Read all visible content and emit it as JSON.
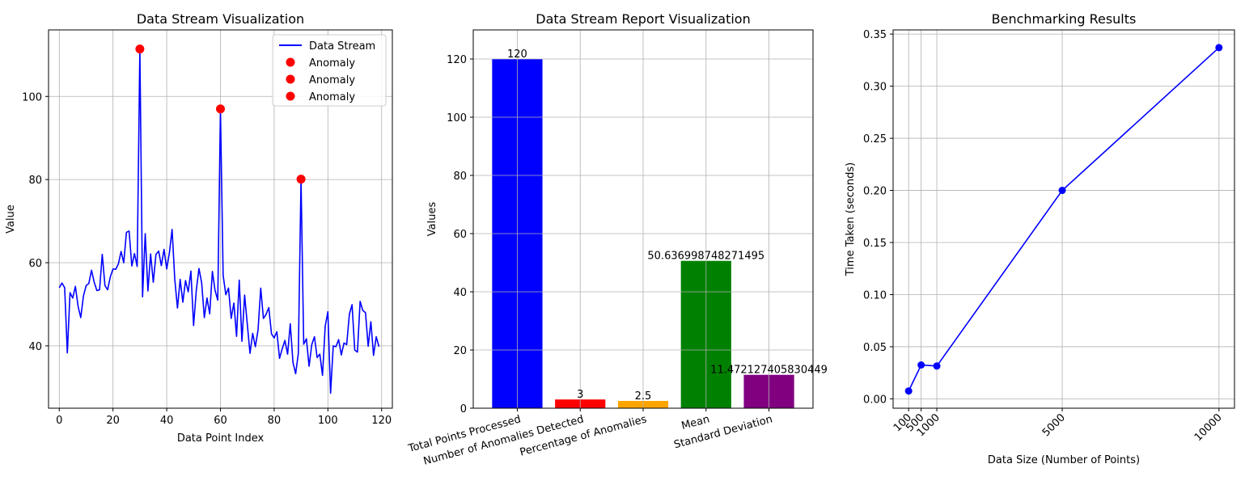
{
  "colors": {
    "line": "#0000ff",
    "anomaly": "#ff0000",
    "grid": "#b0b0b0",
    "axes": "#000000",
    "legend_border": "#cccccc"
  },
  "chart_data": [
    {
      "type": "line",
      "title": "Data Stream Visualization",
      "xlabel": "Data Point Index",
      "ylabel": "Value",
      "xlim": [
        -4,
        124
      ],
      "ylim": [
        25,
        116
      ],
      "xticks": [
        0,
        20,
        40,
        60,
        80,
        100,
        120
      ],
      "yticks": [
        40,
        60,
        80,
        100
      ],
      "grid": true,
      "legend": {
        "placement": "top-right",
        "entries": [
          "Data Stream",
          "Anomaly",
          "Anomaly",
          "Anomaly"
        ]
      },
      "series": [
        {
          "name": "Data Stream",
          "color": "#0000ff",
          "x_start": 0,
          "values": [
            54.0,
            55.1,
            54.0,
            38.3,
            52.8,
            51.5,
            54.3,
            49.5,
            46.8,
            52.0,
            54.5,
            55.0,
            58.2,
            55.3,
            53.3,
            53.5,
            62.0,
            54.5,
            53.5,
            56.6,
            58.5,
            58.4,
            59.7,
            62.7,
            60.0,
            67.3,
            67.6,
            59.2,
            62.2,
            59.1,
            111.4,
            51.8,
            67.0,
            53.2,
            62.1,
            55.3,
            62.0,
            62.8,
            59.3,
            63.2,
            58.5,
            62.4,
            68.0,
            56.0,
            49.1,
            56.0,
            50.5,
            55.7,
            53.0,
            58.0,
            44.9,
            53.3,
            58.6,
            55.2,
            46.8,
            51.5,
            47.7,
            57.9,
            53.3,
            51.0,
            97.0,
            57.0,
            52.3,
            53.9,
            46.6,
            50.3,
            42.3,
            55.8,
            41.1,
            52.2,
            45.2,
            38.2,
            43.0,
            39.8,
            43.8,
            53.9,
            46.6,
            47.6,
            49.2,
            42.9,
            41.9,
            43.4,
            37.0,
            39.3,
            41.3,
            38.0,
            45.3,
            36.0,
            33.3,
            38.2,
            80.1,
            40.4,
            41.7,
            35.1,
            40.3,
            42.2,
            37.2,
            38.0,
            32.9,
            44.7,
            48.2,
            28.6,
            40.0,
            39.8,
            41.5,
            37.8,
            40.7,
            40.3,
            47.6,
            49.9,
            39.0,
            38.5,
            50.7,
            48.5,
            48.0,
            39.9,
            45.8,
            37.7,
            42.2,
            39.8
          ]
        },
        {
          "name": "Anomaly",
          "color": "#ff0000",
          "points": [
            [
              30,
              111.4
            ]
          ]
        },
        {
          "name": "Anomaly",
          "color": "#ff0000",
          "points": [
            [
              60,
              97.0
            ]
          ]
        },
        {
          "name": "Anomaly",
          "color": "#ff0000",
          "points": [
            [
              90,
              80.1
            ]
          ]
        }
      ]
    },
    {
      "type": "bar",
      "title": "Data Stream Report Visualization",
      "xlabel": "",
      "ylabel": "Values",
      "ylim": [
        0,
        130
      ],
      "yticks": [
        0,
        20,
        40,
        60,
        80,
        100,
        120
      ],
      "grid": true,
      "categories": [
        "Total Points Processed",
        "Number of Anomalies Detected",
        "Percentage of Anomalies",
        "Mean",
        "Standard Deviation"
      ],
      "values": [
        120,
        3,
        2.5,
        50.636998748271495,
        11.472127405830449
      ],
      "value_labels": [
        "120",
        "3",
        "2.5",
        "50.636998748271495",
        "11.472127405830449"
      ],
      "colors": [
        "#0000ff",
        "#ff0000",
        "#ffa500",
        "#008000",
        "#800080"
      ]
    },
    {
      "type": "line",
      "title": "Benchmarking Results",
      "xlabel": "Data Size (Number of Points)",
      "ylabel": "Time Taken (seconds)",
      "xlim": [
        -395,
        10495
      ],
      "ylim": [
        -0.009,
        0.354
      ],
      "xticks": [
        100,
        500,
        1000,
        5000,
        10000
      ],
      "yticks": [
        0.0,
        0.05,
        0.1,
        0.15,
        0.2,
        0.25,
        0.3,
        0.35
      ],
      "ytick_labels": [
        "0.00",
        "0.05",
        "0.10",
        "0.15",
        "0.20",
        "0.25",
        "0.30",
        "0.35"
      ],
      "grid": true,
      "series": [
        {
          "color": "#0000ff",
          "x": [
            100,
            500,
            1000,
            5000,
            10000
          ],
          "y": [
            0.0075,
            0.0325,
            0.0315,
            0.2,
            0.337
          ]
        }
      ]
    }
  ]
}
